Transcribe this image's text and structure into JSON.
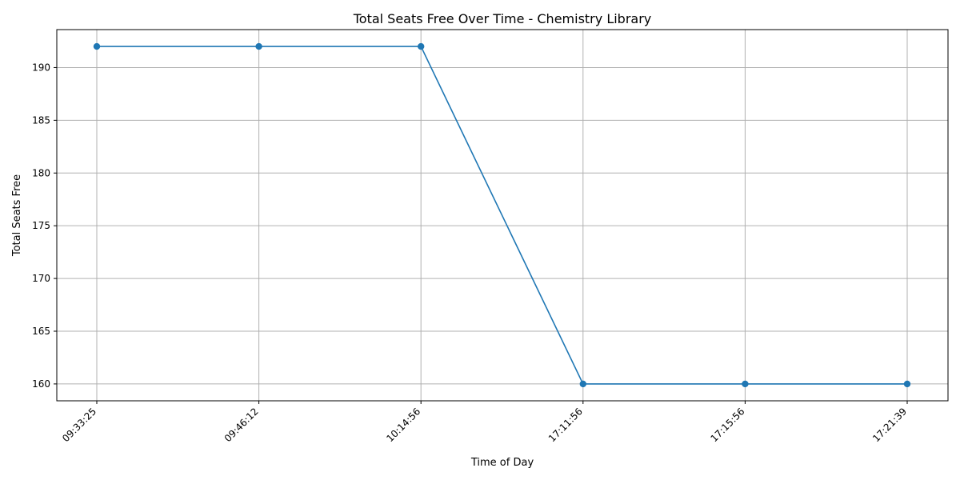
{
  "chart_data": {
    "type": "line",
    "title": "Total Seats Free Over Time - Chemistry Library",
    "xlabel": "Time of Day",
    "ylabel": "Total Seats Free",
    "categories": [
      "09:33:25",
      "09:46:12",
      "10:14:56",
      "17:11:56",
      "17:15:56",
      "17:21:39"
    ],
    "series": [
      {
        "values": [
          192,
          192,
          192,
          160,
          160,
          160
        ],
        "color": "#1f77b4",
        "marker": "circle"
      }
    ],
    "yticks": [
      160,
      165,
      170,
      175,
      180,
      185,
      190
    ],
    "ylim": [
      158.4,
      193.6
    ],
    "grid": true,
    "xtick_rotation": 45
  }
}
